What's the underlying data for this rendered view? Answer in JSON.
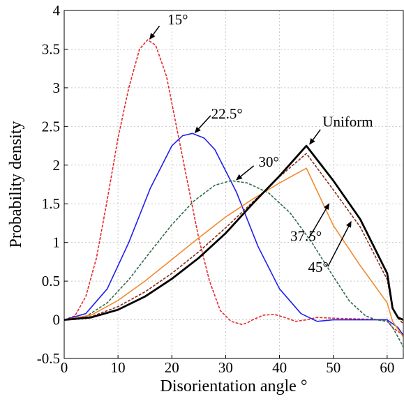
{
  "chart_data": {
    "type": "line",
    "xlabel": "Disorientation angle °",
    "ylabel": "Probability density",
    "xlim": [
      0,
      63
    ],
    "ylim": [
      -0.5,
      4
    ],
    "xticks": [
      "0",
      "10",
      "20",
      "30",
      "40",
      "50",
      "60"
    ],
    "yticks": [
      "-0.5",
      "0",
      "0.5",
      "1",
      "1.5",
      "2",
      "2.5",
      "3",
      "3.5",
      "4"
    ],
    "grid": true,
    "series": [
      {
        "color": "#e8262b",
        "style": "dashed",
        "x": [
          0,
          2,
          4,
          6,
          8,
          10,
          12,
          14,
          15.5,
          17,
          19,
          21,
          23,
          25,
          27,
          29,
          31,
          33,
          34,
          35,
          37,
          39,
          41,
          43,
          45,
          47,
          50,
          55,
          60,
          61,
          62,
          63
        ],
        "y": [
          0,
          0.05,
          0.3,
          0.8,
          1.55,
          2.35,
          3.0,
          3.5,
          3.62,
          3.55,
          3.15,
          2.45,
          1.75,
          1.05,
          0.5,
          0.12,
          -0.02,
          -0.06,
          -0.04,
          0.0,
          0.06,
          0.07,
          0.03,
          -0.02,
          0.0,
          0.03,
          0.02,
          0.01,
          0.0,
          -0.1,
          -0.15,
          -0.2
        ]
      },
      {
        "color": "#1f1ff0",
        "style": "solid",
        "x": [
          0,
          4,
          8,
          12,
          16,
          20,
          22,
          23.8,
          26,
          28,
          32,
          36,
          40,
          44,
          47,
          50,
          55,
          60,
          61,
          62,
          63
        ],
        "y": [
          0,
          0.08,
          0.4,
          1.0,
          1.7,
          2.25,
          2.38,
          2.41,
          2.35,
          2.2,
          1.65,
          0.95,
          0.4,
          0.08,
          -0.02,
          0.0,
          0.0,
          0.0,
          -0.05,
          -0.1,
          -0.2
        ]
      },
      {
        "color": "#2f6b4a",
        "style": "dashed",
        "x": [
          0,
          4,
          8,
          12,
          16,
          20,
          24,
          28,
          31,
          34,
          38,
          42,
          46,
          50,
          53,
          56,
          58,
          60,
          61,
          62,
          63
        ],
        "y": [
          0,
          0.04,
          0.22,
          0.52,
          0.88,
          1.23,
          1.53,
          1.74,
          1.8,
          1.77,
          1.64,
          1.38,
          1.0,
          0.56,
          0.24,
          0.05,
          0.0,
          -0.02,
          -0.1,
          -0.22,
          -0.35
        ]
      },
      {
        "color": "#f28a2e",
        "style": "solid",
        "x": [
          0,
          5,
          10,
          15,
          20,
          25,
          30,
          35,
          40,
          45,
          50,
          55,
          60,
          61,
          62,
          63
        ],
        "y": [
          0,
          0.06,
          0.25,
          0.5,
          0.78,
          1.06,
          1.33,
          1.56,
          1.77,
          1.96,
          1.22,
          0.7,
          0.22,
          -0.02,
          -0.12,
          -0.22
        ]
      },
      {
        "color": "#8b2a1a",
        "style": "dashed",
        "x": [
          0,
          5,
          10,
          15,
          20,
          25,
          30,
          35,
          40,
          45,
          50,
          55,
          60,
          61,
          62,
          63
        ],
        "y": [
          0,
          0.04,
          0.17,
          0.36,
          0.6,
          0.88,
          1.19,
          1.52,
          1.85,
          2.15,
          1.68,
          1.2,
          0.52,
          0.15,
          0.02,
          -0.05
        ]
      },
      {
        "color": "#000000",
        "style": "solid",
        "bold": true,
        "x": [
          0,
          5,
          10,
          15,
          20,
          25,
          30,
          35,
          40,
          45,
          50,
          55,
          60,
          61,
          62,
          63
        ],
        "y": [
          0,
          0.03,
          0.13,
          0.3,
          0.53,
          0.8,
          1.12,
          1.5,
          1.86,
          2.25,
          1.8,
          1.3,
          0.6,
          0.15,
          0.03,
          0.0
        ]
      }
    ],
    "annotations": [
      {
        "label": "15°",
        "text_x": 19.2,
        "text_y": 3.82,
        "arrow_from": [
          17.7,
          3.8
        ],
        "arrow_to": [
          15.9,
          3.63
        ]
      },
      {
        "label": "22.5°",
        "text_x": 27.3,
        "text_y": 2.6,
        "arrow_from": [
          27.2,
          2.64
        ],
        "arrow_to": [
          24.3,
          2.42
        ]
      },
      {
        "label": "30°",
        "text_x": 36.1,
        "text_y": 1.98,
        "arrow_from": [
          35.2,
          1.99
        ],
        "arrow_to": [
          32.0,
          1.81
        ]
      },
      {
        "label": "Uniform",
        "text_x": 48.0,
        "text_y": 2.5,
        "arrow_from": [
          47.6,
          2.46
        ],
        "arrow_to": [
          45.6,
          2.27
        ]
      },
      {
        "label": "37.5°",
        "text_x": 42.0,
        "text_y": 1.02,
        "arrow_from": [
          45.5,
          1.06
        ],
        "arrow_to": [
          49.2,
          1.5
        ]
      },
      {
        "label": "45°",
        "text_x": 45.3,
        "text_y": 0.62,
        "arrow_from": [
          49.0,
          0.69
        ],
        "arrow_to": [
          53.3,
          1.27
        ]
      }
    ]
  }
}
